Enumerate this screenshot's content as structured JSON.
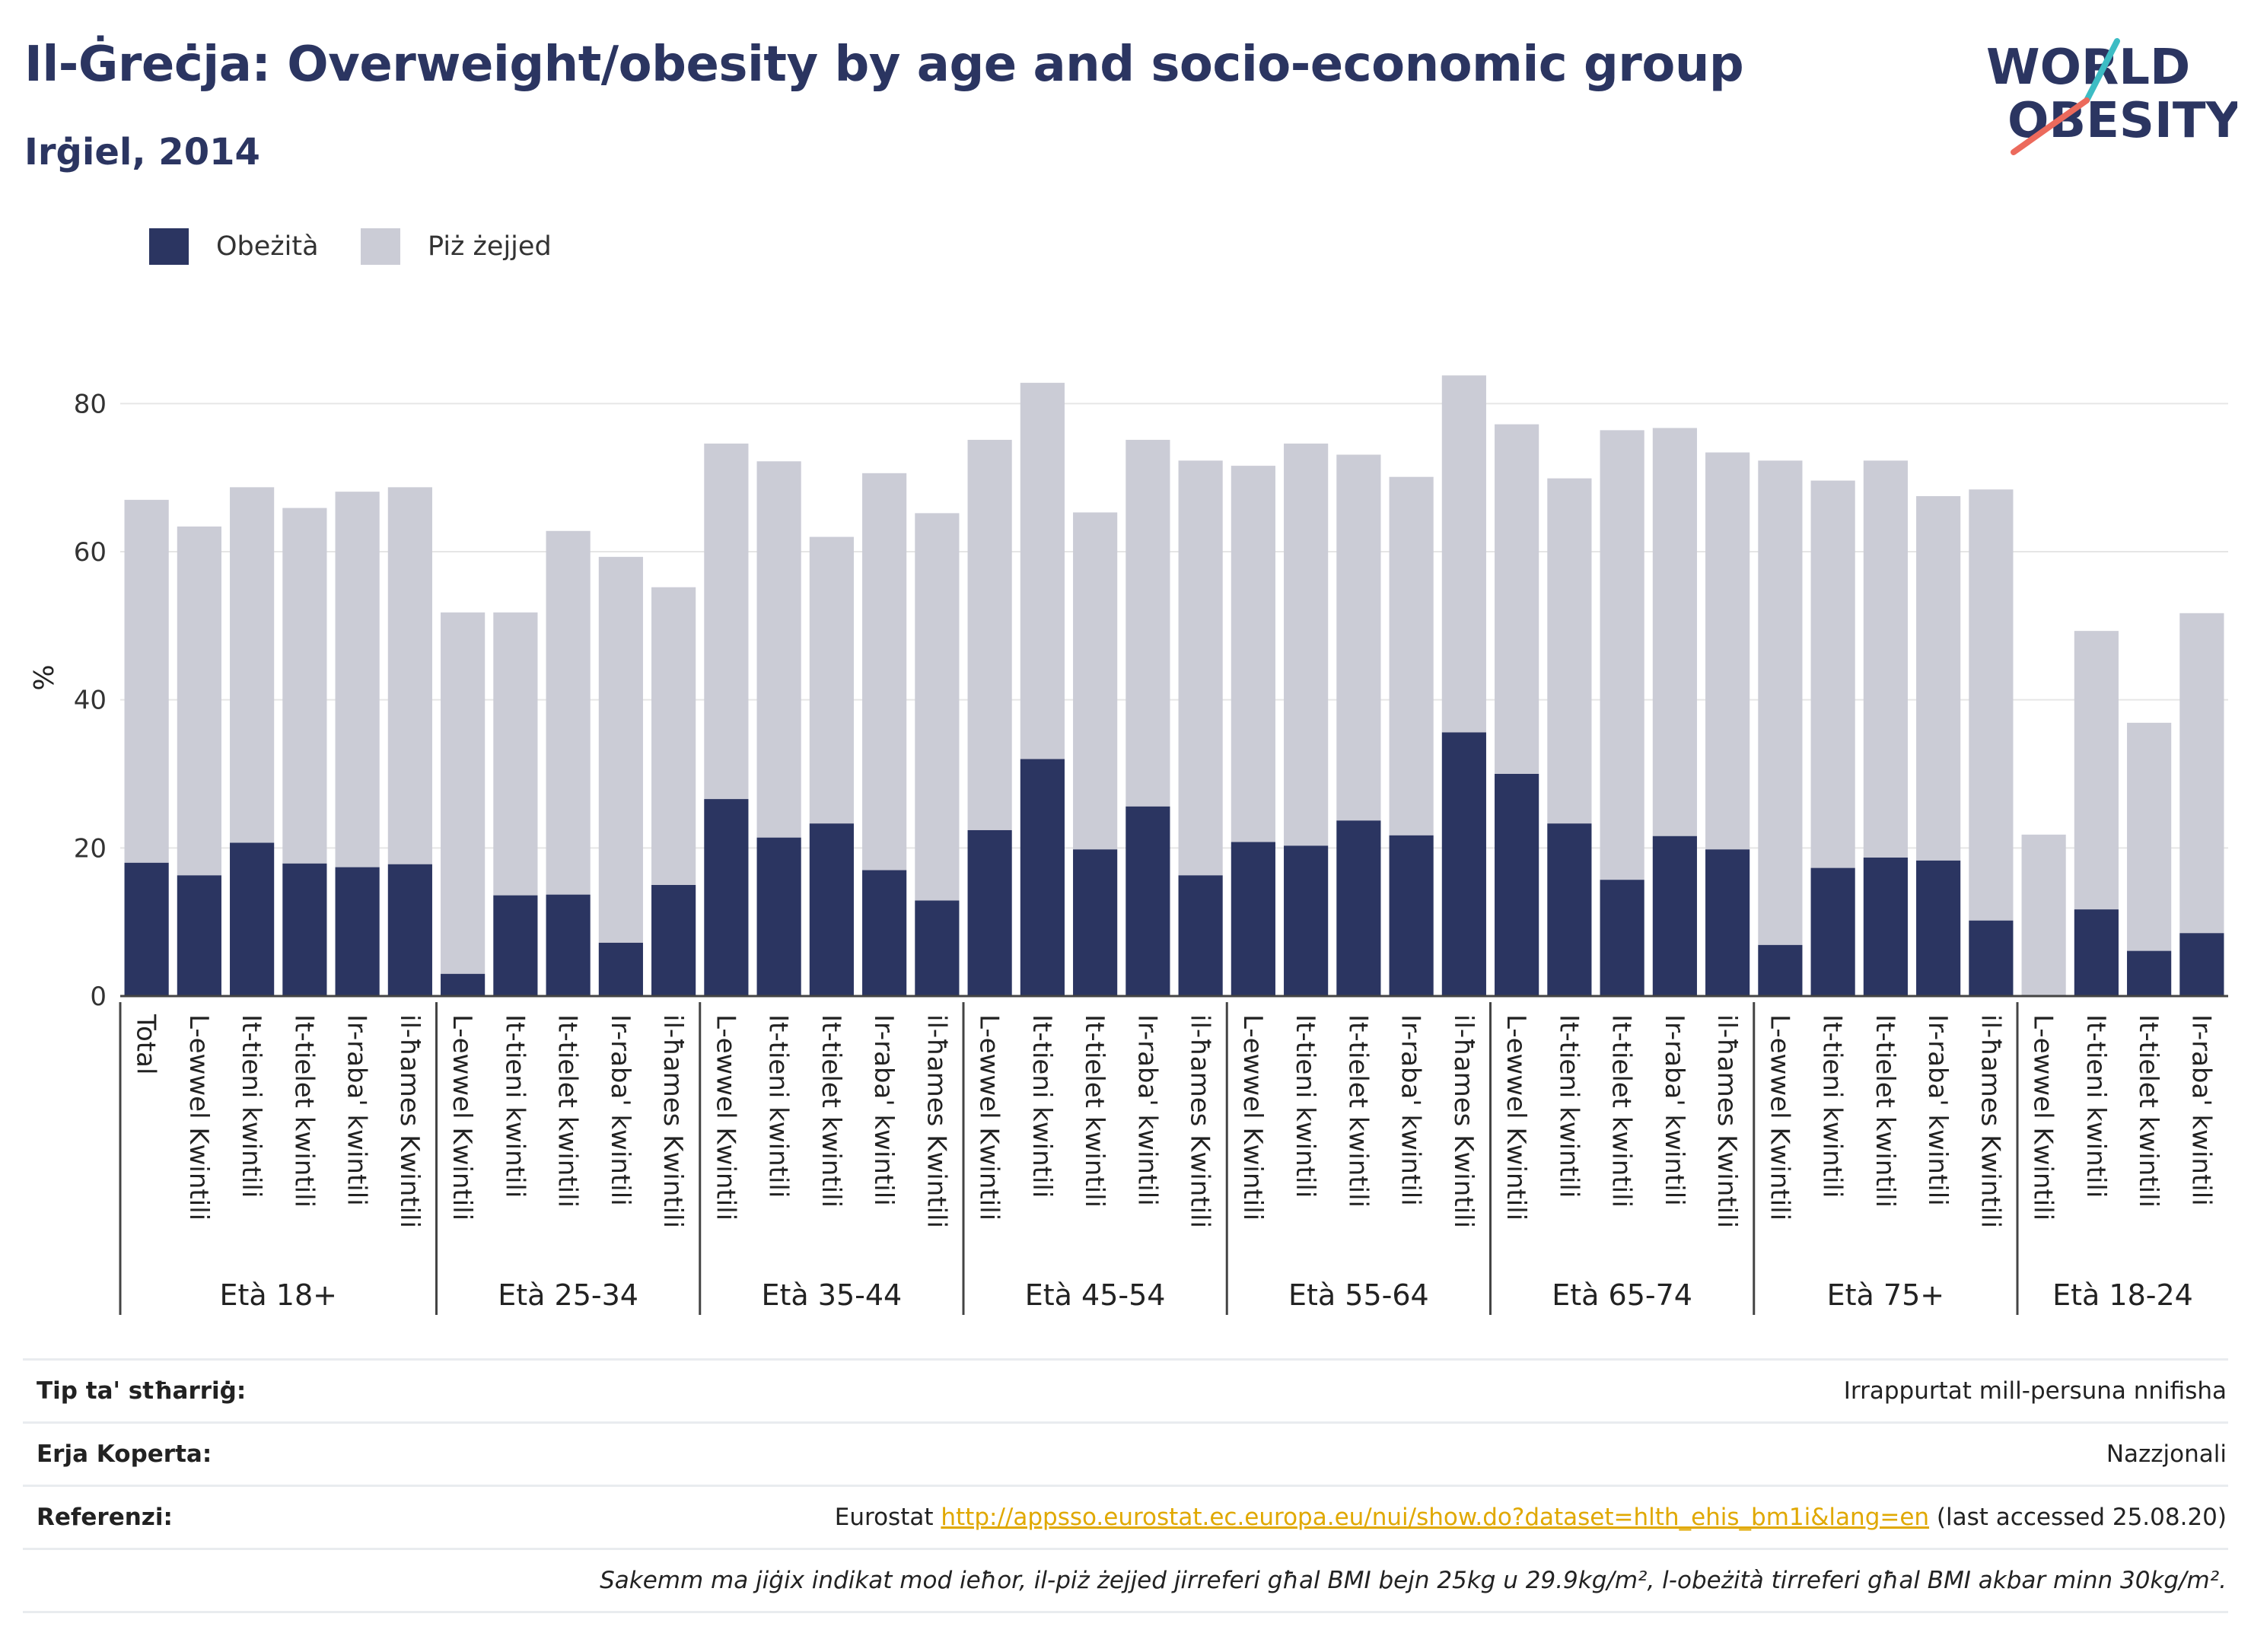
{
  "header": {
    "title": "Il-Ġreċja: Overweight/obesity by age and socio-economic group",
    "subtitle": "Irġiel, 2014"
  },
  "logo": {
    "line1": "WORLD",
    "line2": "OBESITY"
  },
  "colors": {
    "obesity": "#2b3561",
    "overweight": "#cbccd6",
    "grid": "#e6e6e6",
    "axis": "#444444",
    "title": "#2b3561",
    "link": "#e0a800"
  },
  "chart_data": {
    "type": "bar",
    "stacked": true,
    "ylabel": "%",
    "ylim": [
      0,
      90
    ],
    "yticks": [
      0,
      20,
      40,
      60,
      80
    ],
    "grid": true,
    "legend_position": "top-left",
    "series": [
      {
        "name": "Obeżità",
        "color": "#2b3561"
      },
      {
        "name": "Piż żejjed",
        "color": "#cbccd6"
      }
    ],
    "groups": [
      {
        "label": "Età 18+",
        "bars": [
          {
            "category": "Total",
            "obesity": 18.0,
            "total": 67.0
          },
          {
            "category": "L-ewwel Kwintili",
            "obesity": 16.3,
            "total": 63.4
          },
          {
            "category": "It-tieni kwintili",
            "obesity": 20.7,
            "total": 68.7
          },
          {
            "category": "It-tielet kwintili",
            "obesity": 17.9,
            "total": 65.9
          },
          {
            "category": "Ir-raba' kwintili",
            "obesity": 17.4,
            "total": 68.1
          },
          {
            "category": "il-ħames Kwintili",
            "obesity": 17.8,
            "total": 68.7
          }
        ]
      },
      {
        "label": "Età 25-34",
        "bars": [
          {
            "category": "L-ewwel Kwintili",
            "obesity": 3.0,
            "total": 51.8
          },
          {
            "category": "It-tieni kwintili",
            "obesity": 13.6,
            "total": 51.8
          },
          {
            "category": "It-tielet kwintili",
            "obesity": 13.7,
            "total": 62.8
          },
          {
            "category": "Ir-raba' kwintili",
            "obesity": 7.2,
            "total": 59.3
          },
          {
            "category": "il-ħames Kwintili",
            "obesity": 15.0,
            "total": 55.2
          }
        ]
      },
      {
        "label": "Età 35-44",
        "bars": [
          {
            "category": "L-ewwel Kwintili",
            "obesity": 26.6,
            "total": 74.6
          },
          {
            "category": "It-tieni kwintili",
            "obesity": 21.4,
            "total": 72.2
          },
          {
            "category": "It-tielet kwintili",
            "obesity": 23.3,
            "total": 62.0
          },
          {
            "category": "Ir-raba' kwintili",
            "obesity": 17.0,
            "total": 70.6
          },
          {
            "category": "il-ħames Kwintili",
            "obesity": 12.9,
            "total": 65.2
          }
        ]
      },
      {
        "label": "Età 45-54",
        "bars": [
          {
            "category": "L-ewwel Kwintili",
            "obesity": 22.4,
            "total": 75.1
          },
          {
            "category": "It-tieni kwintili",
            "obesity": 32.0,
            "total": 82.8
          },
          {
            "category": "It-tielet kwintili",
            "obesity": 19.8,
            "total": 65.3
          },
          {
            "category": "Ir-raba' kwintili",
            "obesity": 25.6,
            "total": 75.1
          },
          {
            "category": "il-ħames Kwintili",
            "obesity": 16.3,
            "total": 72.3
          }
        ]
      },
      {
        "label": "Età 55-64",
        "bars": [
          {
            "category": "L-ewwel Kwintili",
            "obesity": 20.8,
            "total": 71.6
          },
          {
            "category": "It-tieni kwintili",
            "obesity": 20.3,
            "total": 74.6
          },
          {
            "category": "It-tielet kwintili",
            "obesity": 23.7,
            "total": 73.1
          },
          {
            "category": "Ir-raba' kwintili",
            "obesity": 21.7,
            "total": 70.1
          },
          {
            "category": "il-ħames Kwintili",
            "obesity": 35.6,
            "total": 83.8
          }
        ]
      },
      {
        "label": "Età 65-74",
        "bars": [
          {
            "category": "L-ewwel Kwintili",
            "obesity": 30.0,
            "total": 77.2
          },
          {
            "category": "It-tieni kwintili",
            "obesity": 23.3,
            "total": 69.9
          },
          {
            "category": "It-tielet kwintili",
            "obesity": 15.7,
            "total": 76.4
          },
          {
            "category": "Ir-raba' kwintili",
            "obesity": 21.6,
            "total": 76.7
          },
          {
            "category": "il-ħames Kwintili",
            "obesity": 19.8,
            "total": 73.4
          }
        ]
      },
      {
        "label": "Età 75+",
        "bars": [
          {
            "category": "L-ewwel Kwintili",
            "obesity": 6.9,
            "total": 72.3
          },
          {
            "category": "It-tieni kwintili",
            "obesity": 17.3,
            "total": 69.6
          },
          {
            "category": "It-tielet kwintili",
            "obesity": 18.7,
            "total": 72.3
          },
          {
            "category": "Ir-raba' kwintili",
            "obesity": 18.3,
            "total": 67.5
          },
          {
            "category": "il-ħames Kwintili",
            "obesity": 10.2,
            "total": 68.4
          }
        ]
      },
      {
        "label": "Età 18-24",
        "bars": [
          {
            "category": "L-ewwel Kwintili",
            "obesity": 0.0,
            "total": 21.8
          },
          {
            "category": "It-tieni kwintili",
            "obesity": 11.7,
            "total": 49.3
          },
          {
            "category": "It-tielet kwintili",
            "obesity": 6.1,
            "total": 36.9
          },
          {
            "category": "Ir-raba' kwintili",
            "obesity": 8.5,
            "total": 51.7
          }
        ]
      }
    ]
  },
  "info": {
    "type_label": "Tip ta' stħarriġ:",
    "type_value": "Irrappurtat mill-persuna nnifisha",
    "area_label": "Erja Koperta:",
    "area_value": "Nazzjonali",
    "refs_label": "Referenzi:",
    "refs_prefix": "Eurostat",
    "refs_link": "http://appsso.eurostat.ec.europa.eu/nui/show.do?dataset=hlth_ehis_bm1i&lang=en",
    "refs_suffix": "(last accessed 25.08.20)",
    "note": "Sakemm ma jiġix indikat mod ieħor, il-piż żejjed jirreferi għal BMI bejn 25kg u 29.9kg/m², l-obeżità tirreferi għal BMI akbar minn 30kg/m²."
  }
}
